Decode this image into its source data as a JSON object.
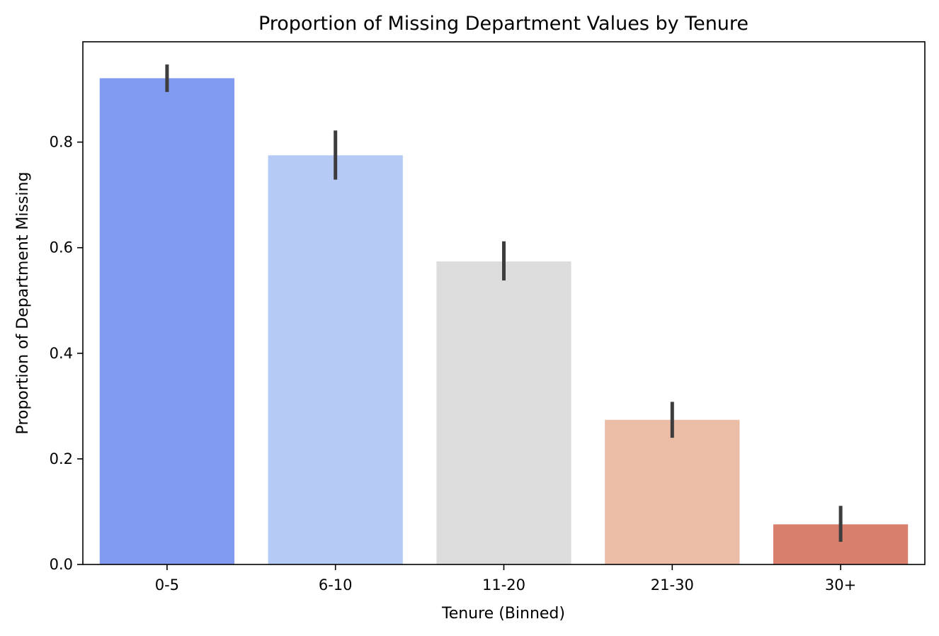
{
  "chart_data": {
    "type": "bar",
    "title": "Proportion of Missing Department Values by Tenure",
    "xlabel": "Tenure (Binned)",
    "ylabel": "Proportion of Department Missing",
    "categories": [
      "0-5",
      "6-10",
      "11-20",
      "21-30",
      "30+"
    ],
    "values": [
      0.921,
      0.775,
      0.574,
      0.274,
      0.076
    ],
    "error_low": [
      0.895,
      0.729,
      0.538,
      0.24,
      0.043
    ],
    "error_high": [
      0.947,
      0.822,
      0.612,
      0.308,
      0.111
    ],
    "colors": [
      "#819bf1",
      "#b5caf4",
      "#dcdcdc",
      "#ebbca6",
      "#d8806d"
    ],
    "error_bar_color": "#3d3d3d",
    "ylim": [
      0,
      0.99
    ],
    "yticks": [
      0.0,
      0.2,
      0.4,
      0.6,
      0.8
    ],
    "ytick_labels": [
      "0.0",
      "0.2",
      "0.4",
      "0.6",
      "0.8"
    ],
    "grid": false,
    "legend": "none"
  }
}
